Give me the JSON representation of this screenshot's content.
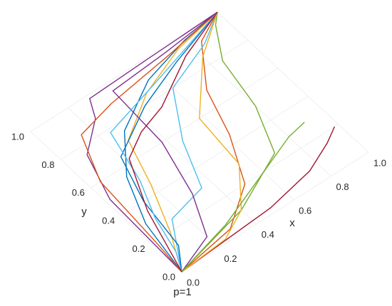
{
  "chart_data": {
    "type": "line",
    "title": "p=1",
    "xlabel": "x",
    "ylabel": "y",
    "xlim": [
      0,
      1
    ],
    "ylim": [
      0,
      1
    ],
    "xticks": [
      {
        "value": 0,
        "label": "0.0"
      },
      0.2,
      0.4,
      0.6,
      0.8,
      {
        "value": 1,
        "label": "1.0"
      }
    ],
    "yticks": [
      {
        "value": 0,
        "label": "0.0"
      },
      0.2,
      0.4,
      0.6,
      0.8,
      {
        "value": 1,
        "label": "1.0"
      }
    ],
    "grid": true,
    "series": [
      {
        "color": "#0072BD",
        "x": [
          0,
          0.05,
          0.15,
          0.3,
          0.55,
          0.8,
          1
        ],
        "values": [
          0,
          0.3,
          0.55,
          0.75,
          0.9,
          0.97,
          1
        ]
      },
      {
        "color": "#D95319",
        "x": [
          0,
          0.3,
          0.5,
          0.62,
          0.7,
          0.85,
          1
        ],
        "values": [
          0,
          0.05,
          0.2,
          0.45,
          0.7,
          0.92,
          1
        ]
      },
      {
        "color": "#EDB120",
        "x": [
          0,
          0.1,
          0.2,
          0.28,
          0.5,
          0.75,
          1
        ],
        "values": [
          0,
          0.2,
          0.45,
          0.7,
          0.85,
          0.95,
          1
        ]
      },
      {
        "color": "#7E2F8E",
        "x": [
          0,
          0.02,
          0.1,
          0.25,
          0.3,
          0.6,
          1
        ],
        "values": [
          0,
          0.5,
          0.75,
          0.88,
          0.98,
          0.99,
          1
        ]
      },
      {
        "color": "#77AC30",
        "x": [
          0,
          0.4,
          0.7,
          0.8,
          0.85,
          0.95,
          1
        ],
        "values": [
          0,
          0.1,
          0.25,
          0.5,
          0.78,
          0.95,
          1
        ]
      },
      {
        "color": "#4DBEEE",
        "x": [
          0,
          0.15,
          0.35,
          0.45,
          0.6,
          0.85,
          1
        ],
        "values": [
          0,
          0.25,
          0.3,
          0.55,
          0.8,
          0.9,
          1
        ]
      },
      {
        "color": "#A2142F",
        "x": [
          0,
          0.5,
          0.75,
          0.9,
          0.98
        ],
        "values": [
          0,
          0.03,
          0.08,
          0.15,
          0.2
        ]
      },
      {
        "color": "#0072BD",
        "x": [
          0,
          0.08,
          0.12,
          0.2,
          0.45,
          0.7,
          1
        ],
        "values": [
          0,
          0.12,
          0.4,
          0.65,
          0.8,
          0.9,
          1
        ]
      },
      {
        "color": "#D95319",
        "x": [
          0,
          0.02,
          0.05,
          0.15,
          0.35,
          0.7,
          1
        ],
        "values": [
          0,
          0.2,
          0.6,
          0.85,
          0.9,
          0.95,
          1
        ]
      },
      {
        "color": "#EDB120",
        "x": [
          0,
          0.25,
          0.4,
          0.55,
          0.58,
          0.8,
          1
        ],
        "values": [
          0,
          0.02,
          0.1,
          0.3,
          0.6,
          0.85,
          1
        ]
      },
      {
        "color": "#7E2F8E",
        "x": [
          0,
          0.2,
          0.3,
          0.38,
          0.4,
          0.7,
          1
        ],
        "values": [
          0,
          0.08,
          0.3,
          0.6,
          0.95,
          0.97,
          1
        ]
      },
      {
        "color": "#77AC30",
        "x": [
          0,
          0.3,
          0.6,
          0.8,
          0.9
        ],
        "values": [
          0,
          0.08,
          0.2,
          0.28,
          0.3
        ]
      },
      {
        "color": "#4DBEEE",
        "x": [
          0,
          0.05,
          0.1,
          0.18,
          0.25,
          0.6,
          1
        ],
        "values": [
          0,
          0.1,
          0.3,
          0.5,
          0.78,
          0.88,
          1
        ]
      },
      {
        "color": "#A2142F",
        "x": [
          0,
          0.1,
          0.22,
          0.35,
          0.5,
          0.75,
          1
        ],
        "values": [
          0,
          0.35,
          0.62,
          0.7,
          0.75,
          0.9,
          1
        ]
      }
    ]
  }
}
